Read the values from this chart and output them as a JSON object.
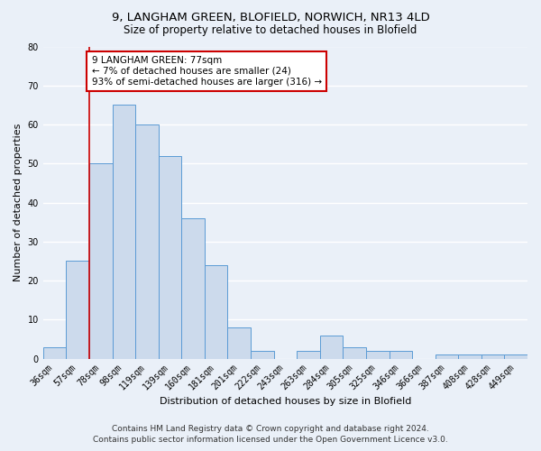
{
  "title_line1": "9, LANGHAM GREEN, BLOFIELD, NORWICH, NR13 4LD",
  "title_line2": "Size of property relative to detached houses in Blofield",
  "xlabel": "Distribution of detached houses by size in Blofield",
  "ylabel": "Number of detached properties",
  "categories": [
    "36sqm",
    "57sqm",
    "78sqm",
    "98sqm",
    "119sqm",
    "139sqm",
    "160sqm",
    "181sqm",
    "201sqm",
    "222sqm",
    "243sqm",
    "263sqm",
    "284sqm",
    "305sqm",
    "325sqm",
    "346sqm",
    "366sqm",
    "387sqm",
    "408sqm",
    "428sqm",
    "449sqm"
  ],
  "values": [
    3,
    25,
    50,
    65,
    60,
    52,
    36,
    24,
    8,
    2,
    0,
    2,
    6,
    3,
    2,
    2,
    0,
    1,
    1,
    1,
    1
  ],
  "bar_color": "#ccdaec",
  "bar_edge_color": "#5b9bd5",
  "annotation_text": "9 LANGHAM GREEN: 77sqm\n← 7% of detached houses are smaller (24)\n93% of semi-detached houses are larger (316) →",
  "annotation_box_color": "#ffffff",
  "annotation_box_edge": "#cc0000",
  "vline_x_index": 2,
  "vline_color": "#cc0000",
  "ylim": [
    0,
    80
  ],
  "yticks": [
    0,
    10,
    20,
    30,
    40,
    50,
    60,
    70,
    80
  ],
  "footer_line1": "Contains HM Land Registry data © Crown copyright and database right 2024.",
  "footer_line2": "Contains public sector information licensed under the Open Government Licence v3.0.",
  "background_color": "#eaf0f8",
  "grid_color": "#ffffff",
  "title_fontsize": 9.5,
  "subtitle_fontsize": 8.5,
  "axis_label_fontsize": 8,
  "tick_fontsize": 7,
  "annotation_fontsize": 7.5,
  "footer_fontsize": 6.5
}
